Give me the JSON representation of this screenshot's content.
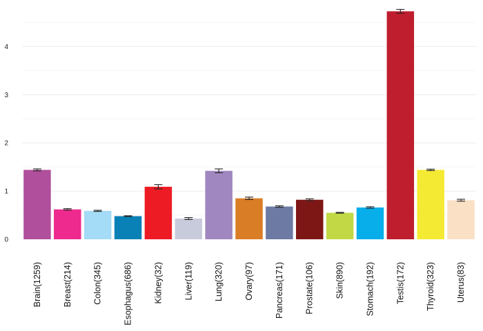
{
  "chart_data": {
    "type": "bar",
    "title": "",
    "xlabel": "",
    "ylabel": "",
    "categories": [
      "Brain(1259)",
      "Breast(214)",
      "Colon(345)",
      "Esophagus(686)",
      "Kidney(32)",
      "Liver(119)",
      "Lung(320)",
      "Ovary(97)",
      "Pancreas(171)",
      "Prostate(106)",
      "Skin(890)",
      "Stomach(192)",
      "Testis(172)",
      "Thyroid(323)",
      "Uterus(83)"
    ],
    "values": [
      1.44,
      0.62,
      0.59,
      0.48,
      1.09,
      0.43,
      1.42,
      0.85,
      0.68,
      0.82,
      0.55,
      0.66,
      4.73,
      1.44,
      0.81
    ],
    "error": [
      0.02,
      0.015,
      0.012,
      0.008,
      0.045,
      0.02,
      0.04,
      0.025,
      0.015,
      0.02,
      0.008,
      0.015,
      0.04,
      0.015,
      0.02
    ],
    "colors": [
      "#b04f9c",
      "#ee2a8e",
      "#a4dbf6",
      "#0981b6",
      "#ed1c24",
      "#c8cbdb",
      "#a087bf",
      "#da7d27",
      "#6d7aa4",
      "#7d1716",
      "#c2d845",
      "#07aeea",
      "#be1e2d",
      "#f5ea33",
      "#fae0c5"
    ],
    "ylim": [
      0,
      4.85
    ],
    "yticks": [
      0,
      1,
      2,
      3,
      4
    ],
    "grid": true,
    "legend": "none"
  }
}
